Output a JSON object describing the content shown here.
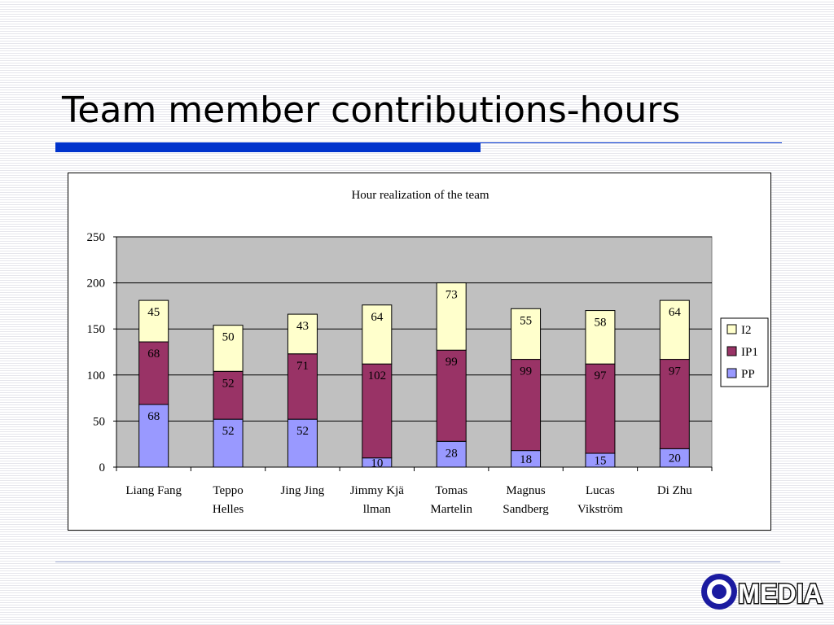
{
  "slide": {
    "title": "Team member contributions-hours"
  },
  "logo": {
    "text": "MEDIA",
    "brand_color": "#1a1aa0"
  },
  "chart_data": {
    "type": "bar",
    "stacked": true,
    "title": "Hour realization of the team",
    "categories": [
      [
        "Liang Fang"
      ],
      [
        "Teppo",
        "Helles"
      ],
      [
        "Jing Jing"
      ],
      [
        "Jimmy Kjä",
        "llman"
      ],
      [
        "Tomas",
        "Martelin"
      ],
      [
        "Magnus",
        "Sandberg"
      ],
      [
        "Lucas",
        "Vikström"
      ],
      [
        "Di Zhu"
      ]
    ],
    "series": [
      {
        "name": "PP",
        "color": "#9999ff",
        "values": [
          68,
          52,
          52,
          10,
          28,
          18,
          15,
          20
        ]
      },
      {
        "name": "IP1",
        "color": "#993366",
        "values": [
          68,
          52,
          71,
          102,
          99,
          99,
          97,
          97
        ]
      },
      {
        "name": "I2",
        "color": "#ffffcc",
        "values": [
          45,
          50,
          43,
          64,
          73,
          55,
          58,
          64
        ]
      }
    ],
    "legend_order": [
      "I2",
      "IP1",
      "PP"
    ],
    "ylim": [
      0,
      250
    ],
    "yticks": [
      0,
      50,
      100,
      150,
      200,
      250
    ],
    "grid": true,
    "plot_background": "#c0c0c0",
    "legend_position": "right",
    "data_labels": true
  }
}
